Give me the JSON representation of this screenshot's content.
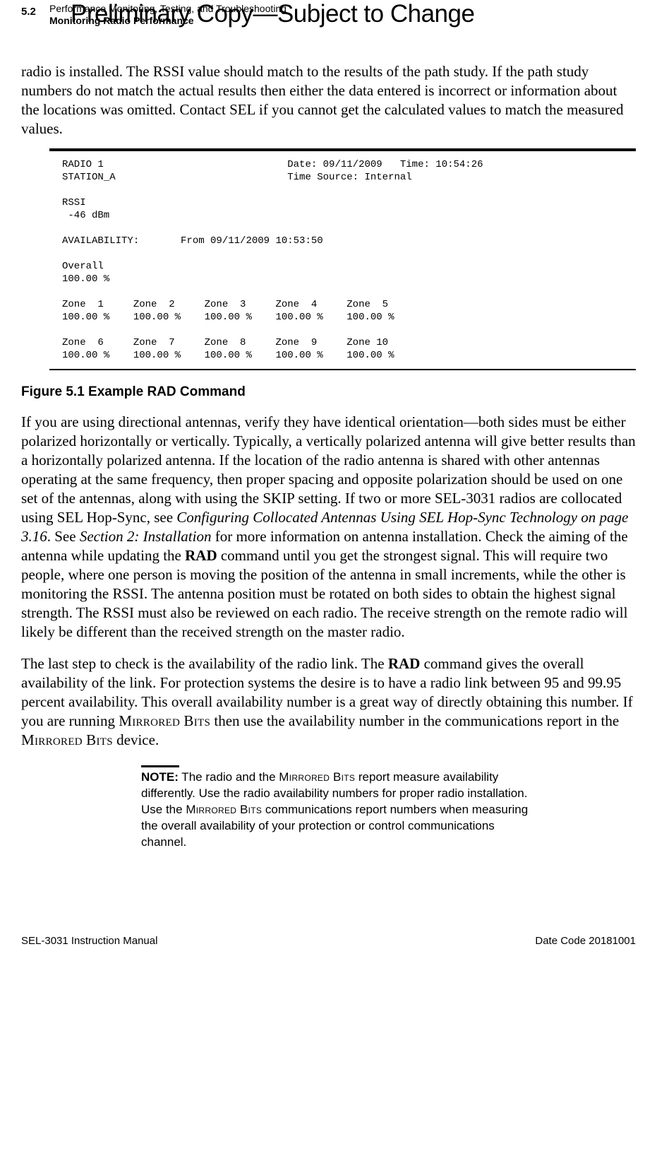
{
  "header": {
    "page_number": "5.2",
    "chapter_title": "Performance Monitoring, Testing, and Troubleshooting",
    "section_title": "Monitoring Radio Performance",
    "watermark": "Preliminary Copy—Subject to Change"
  },
  "paragraphs": {
    "intro": "radio is installed. The RSSI value should match to the results of the path study. If the path study numbers do not match the actual results then either the data entered is incorrect or information about the locations was omitted. Contact SEL if you cannot get the calculated values to match the measured values.",
    "p2_a": "If you are using directional antennas, verify they have identical orientation—both sides must be either polarized horizontally or vertically. Typically, a vertically polarized antenna will give better results than a horizontally polarized antenna. If the location of the radio antenna is shared with other antennas operating at the same frequency, then proper spacing and opposite polarization should be used on one set of the antennas, along with using the SKIP setting. If two or more SEL-3031 radios are collocated using SEL Hop-Sync, see ",
    "p2_i1": "Configuring Collocated Antennas Using SEL Hop-Sync Technology on page 3.16",
    "p2_b": ". See ",
    "p2_i2": "Section 2: Installation",
    "p2_c": " for more information on antenna installation. Check the aiming of the antenna while updating the ",
    "p2_bold": "RAD",
    "p2_d": " command until you get the strongest signal. This will require two people, where one person is moving the position of the antenna in small increments, while the other is monitoring the RSSI. The antenna position must be rotated on both sides to obtain the highest signal strength. The RSSI must also be reviewed on each radio. The receive strength on the remote radio will likely be different than the received strength on the master radio.",
    "p3_a": "The last step to check is the availability of the radio link. The ",
    "p3_bold": "RAD",
    "p3_b": " command gives the overall availability of the link. For protection systems the desire is to have a radio link between 95 and 99.95 percent availability. This overall availability number is a great way of directly obtaining this number. If you are running ",
    "p3_sc1": "Mirrored",
    "p3_sc2": "Bits",
    "p3_c": " then use the availability number in the communications report in the ",
    "p3_d": " device."
  },
  "terminal": {
    "line1": "RADIO 1                               Date: 09/11/2009   Time: 10:54:26",
    "line2": "STATION_A                             Time Source: Internal",
    "line3": "",
    "line4": "RSSI",
    "line5": " -46 dBm",
    "line6": "",
    "line7": "AVAILABILITY:       From 09/11/2009 10:53:50",
    "line8": "",
    "line9": "Overall",
    "line10": "100.00 %",
    "line11": "",
    "line12": "Zone  1     Zone  2     Zone  3     Zone  4     Zone  5",
    "line13": "100.00 %    100.00 %    100.00 %    100.00 %    100.00 %",
    "line14": "",
    "line15": "Zone  6     Zone  7     Zone  8     Zone  9     Zone 10",
    "line16": "100.00 %    100.00 %    100.00 %    100.00 %    100.00 %"
  },
  "figure_caption": "Figure 5.1   Example RAD Command",
  "note": {
    "label": "NOTE:",
    "text_a": " The radio and the ",
    "sc1": "Mirrored",
    "sc2": "Bits",
    "text_b": " report measure availability differently. Use the radio availability numbers for proper radio installation. Use the ",
    "text_c": " communications report numbers when measuring the overall availability of your protection or control communications channel."
  },
  "footer": {
    "left": "SEL-3031 Instruction Manual",
    "right": "Date Code 20181001"
  }
}
